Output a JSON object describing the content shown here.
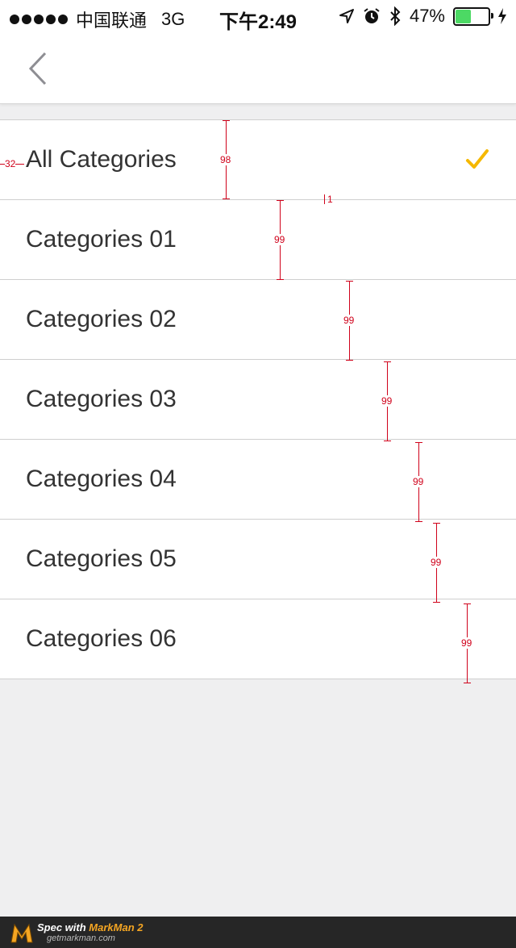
{
  "status_bar": {
    "carrier": "中国联通",
    "network": "3G",
    "time": "下午2:49",
    "battery_percent": "47%",
    "battery_level": 0.47
  },
  "nav": {
    "back_icon": "chevron-left-icon"
  },
  "list": {
    "items": [
      {
        "label": "All Categories",
        "selected": true
      },
      {
        "label": "Categories 01",
        "selected": false
      },
      {
        "label": "Categories 02",
        "selected": false
      },
      {
        "label": "Categories 03",
        "selected": false
      },
      {
        "label": "Categories 04",
        "selected": false
      },
      {
        "label": "Categories 05",
        "selected": false
      },
      {
        "label": "Categories 06",
        "selected": false
      }
    ],
    "check_color": "#f5b800"
  },
  "spec_annotations": {
    "left_inset": "32",
    "divider": "1",
    "row_heights": [
      "98",
      "99",
      "99",
      "99",
      "99",
      "99",
      "99"
    ]
  },
  "footer": {
    "prefix": "Spec with ",
    "brand": "MarkMan 2",
    "url": "getmarkman.com"
  }
}
